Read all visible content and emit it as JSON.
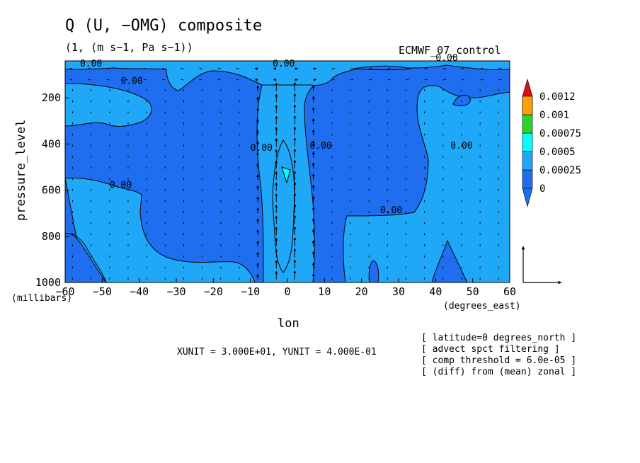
{
  "title": "Q (U, −OMG) composite",
  "subtitle": "(1, (m s−1, Pa s−1))",
  "dataset": "ECMWF_07_control",
  "xaxis": {
    "label": "lon",
    "units": "(degrees_east)"
  },
  "yaxis": {
    "label": "pressure_level",
    "units": "(millibars)"
  },
  "unit_note": "XUNIT = 3.000E+01, YUNIT = 4.000E-01",
  "notes": [
    "[ latitude=0 degrees_north ]",
    "[ advect spct filtering ]",
    "[ comp threshold = 6.0e-05 ]",
    "[ (diff) from (mean) zonal ]"
  ],
  "colors": {
    "level_below_0": "#1f6ef0",
    "level_0": "#20a8f8",
    "level_0_00025": "#00ffff",
    "level_0_0005": "#2ad52a",
    "level_0_00075": "#ffff00",
    "level_0_001": "#ffa000",
    "level_0_0012": "#e01010"
  },
  "chart_data": {
    "type": "contour",
    "title": "Q (U, −OMG) composite",
    "xlabel": "lon",
    "ylabel": "pressure_level",
    "xlim": [
      -60,
      60
    ],
    "ylim": [
      1000,
      40
    ],
    "xticks": [
      -60,
      -50,
      -40,
      -30,
      -20,
      -10,
      0,
      10,
      20,
      30,
      40,
      50,
      60
    ],
    "yticks": [
      200,
      400,
      600,
      800,
      1000
    ],
    "xtick_labels": [
      "−60",
      "−50",
      "−40",
      "−30",
      "−20",
      "−10",
      "0",
      "10",
      "20",
      "30",
      "40",
      "50",
      "60"
    ],
    "ytick_labels": [
      "200",
      "400",
      "600",
      "800",
      "1000"
    ],
    "colorbar_levels": [
      "0",
      "0.00025",
      "0.0005",
      "0.00075",
      "0.001",
      "0.0012"
    ],
    "contour_labels": [
      {
        "text": "0.00",
        "lon": -53,
        "p": 65
      },
      {
        "text": "0.00",
        "lon": -1,
        "p": 65
      },
      {
        "text": "0.00",
        "lon": 43,
        "p": 40
      },
      {
        "text": "0.00",
        "lon": -42,
        "p": 140
      },
      {
        "text": "0.00",
        "lon": -7,
        "p": 430
      },
      {
        "text": "0.00",
        "lon": 9,
        "p": 420
      },
      {
        "text": "0.00",
        "lon": -45,
        "p": 590
      },
      {
        "text": "0.00",
        "lon": 47,
        "p": 420
      },
      {
        "text": "0.00",
        "lon": 28,
        "p": 700
      }
    ],
    "vector_reference": {
      "u_unit": "3.000E+01",
      "omega_unit": "4.000E-01"
    },
    "legend_position": "right",
    "grid": false
  }
}
